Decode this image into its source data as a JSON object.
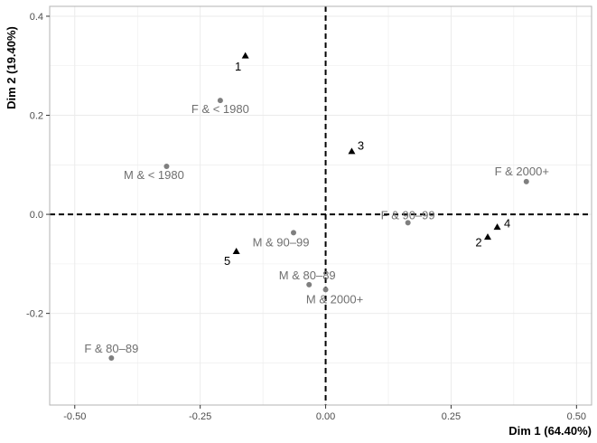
{
  "chart_data": {
    "type": "scatter",
    "xlabel": "Dim 1 (64.40%)",
    "ylabel": "Dim 2 (19.40%)",
    "xlim": [
      -0.55,
      0.53
    ],
    "ylim": [
      -0.385,
      0.42
    ],
    "xticks": [
      -0.5,
      -0.25,
      0.0,
      0.25,
      0.5
    ],
    "xtick_labels": [
      "-0.50",
      "-0.25",
      "0.00",
      "0.25",
      "0.50"
    ],
    "yticks": [
      -0.2,
      0.0,
      0.2,
      0.4
    ],
    "ytick_labels": [
      "-0.2",
      "0.0",
      "0.2",
      "0.4"
    ],
    "grid": true,
    "reference_lines": {
      "x": 0,
      "y": 0,
      "style": "dashed"
    },
    "series": [
      {
        "marker": "circle",
        "color": "#7f7f7f",
        "points": [
          {
            "label": "F & < 1980",
            "x": -0.21,
            "y": 0.23
          },
          {
            "label": "M & < 1980",
            "x": -0.317,
            "y": 0.097
          },
          {
            "label": "F & 2000+",
            "x": 0.4,
            "y": 0.066
          },
          {
            "label": "F & 90–99",
            "x": 0.164,
            "y": -0.017
          },
          {
            "label": "M & 90–99",
            "x": -0.064,
            "y": -0.037
          },
          {
            "label": "M & 80–89",
            "x": -0.033,
            "y": -0.142
          },
          {
            "label": "M & 2000+",
            "x": 0.0,
            "y": -0.152
          },
          {
            "label": "F & 80–89",
            "x": -0.427,
            "y": -0.29
          }
        ]
      },
      {
        "marker": "triangle",
        "color": "#000000",
        "points": [
          {
            "label": "1",
            "x": -0.16,
            "y": 0.32
          },
          {
            "label": "2",
            "x": 0.323,
            "y": -0.046
          },
          {
            "label": "3",
            "x": 0.052,
            "y": 0.127
          },
          {
            "label": "4",
            "x": 0.342,
            "y": -0.026
          },
          {
            "label": "5",
            "x": -0.178,
            "y": -0.075
          }
        ]
      }
    ]
  }
}
